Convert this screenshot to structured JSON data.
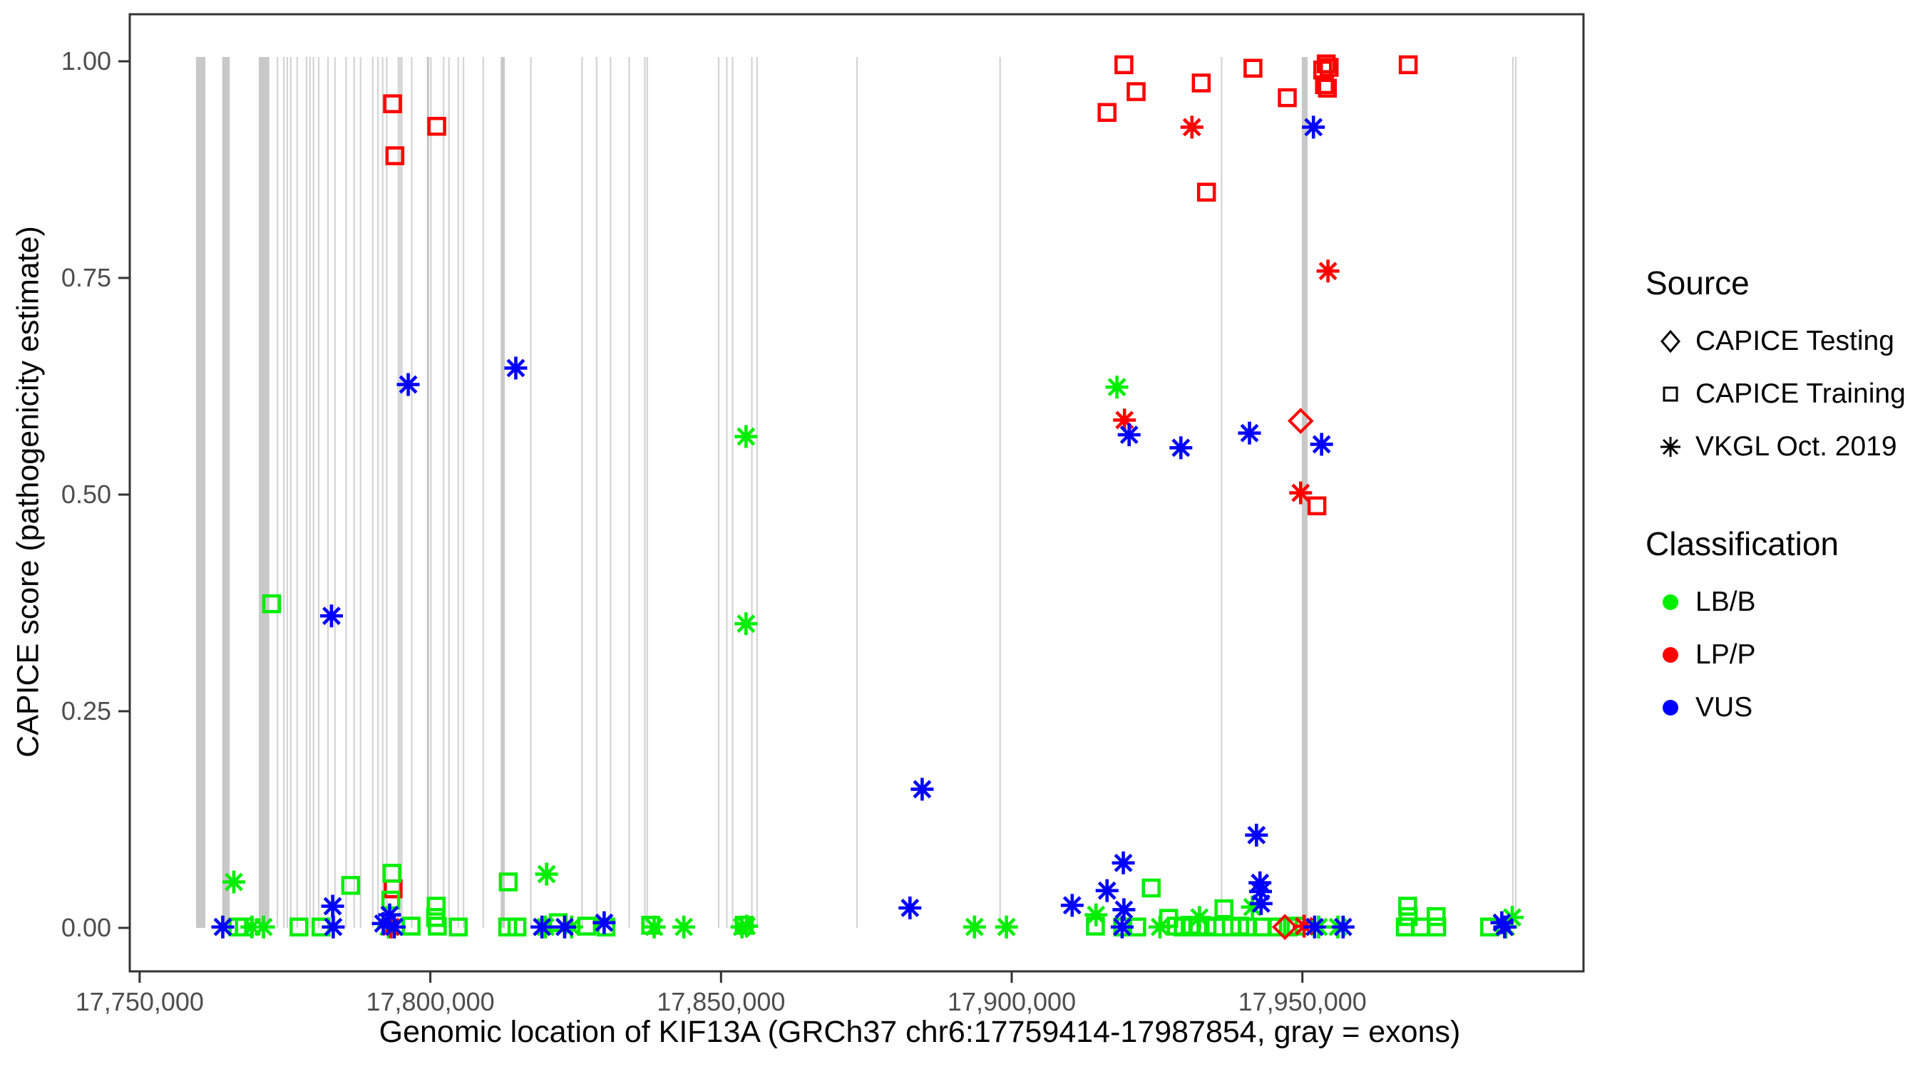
{
  "figure": {
    "xlabel": "Genomic location of KIF13A (GRCh37 chr6:17759414-17987854, gray = exons)",
    "ylabel": "CAPICE score (pathogenicity estimate)"
  },
  "legend": {
    "source": {
      "title": "Source",
      "items": [
        {
          "label": "CAPICE Testing",
          "marker": "diamond"
        },
        {
          "label": "CAPICE Training",
          "marker": "square"
        },
        {
          "label": "VKGL Oct. 2019",
          "marker": "asterisk"
        }
      ]
    },
    "classification": {
      "title": "Classification",
      "items": [
        {
          "label": "LB/B",
          "color": "#00EE00"
        },
        {
          "label": "LP/P",
          "color": "#FF0000"
        },
        {
          "label": "VUS",
          "color": "#0000FF"
        }
      ]
    }
  },
  "chart_data": {
    "type": "scatter",
    "title": "",
    "xlabel": "Genomic location of KIF13A (GRCh37 chr6:17759414-17987854, gray = exons)",
    "ylabel": "CAPICE score (pathogenicity estimate)",
    "grid": "off",
    "legend_position": "right",
    "x_domain": [
      17748300,
      17998350
    ],
    "y_domain": [
      -0.0502,
      1.0543
    ],
    "x_ticks": [
      {
        "value": 17750000,
        "label": "17,750,000"
      },
      {
        "value": 17800000,
        "label": "17,800,000"
      },
      {
        "value": 17850000,
        "label": "17,850,000"
      },
      {
        "value": 17900000,
        "label": "17,900,000"
      },
      {
        "value": 17950000,
        "label": "17,950,000"
      }
    ],
    "y_ticks": [
      {
        "value": 0.0,
        "label": "0.00"
      },
      {
        "value": 0.25,
        "label": "0.25"
      },
      {
        "value": 0.5,
        "label": "0.50"
      },
      {
        "value": 0.75,
        "label": "0.75"
      },
      {
        "value": 1.0,
        "label": "1.00"
      }
    ],
    "marker_by_source": {
      "CAPICE Testing": "diamond",
      "CAPICE Training": "square",
      "VKGL Oct. 2019": "asterisk"
    },
    "color_by_classification": {
      "LB/B": "#00EE00",
      "LP/P": "#FF0000",
      "VUS": "#0000FF"
    },
    "exon_color_wide": "#C8C8C8",
    "exon_color_thin": "#D4D4D4",
    "exon_y_span": [
      0,
      1.005
    ],
    "exon_regions": [
      [
        17759700,
        17761300
      ],
      [
        17764200,
        17765500
      ],
      [
        17770500,
        17772300
      ],
      [
        17799400,
        17799800
      ],
      [
        17812100,
        17812800
      ],
      [
        17949900,
        17950900
      ]
    ],
    "exon_lines": [
      17773700,
      17774800,
      17775400,
      17776000,
      17777100,
      17778700,
      17779300,
      17779900,
      17780800,
      17782400,
      17783600,
      17785500,
      17786900,
      17788000,
      17790100,
      17791000,
      17791800,
      17792500,
      17794500,
      17794800,
      17795100,
      17796800,
      17800100,
      17802300,
      17803200,
      17804800,
      17805700,
      17809100,
      17817300,
      17826100,
      17828600,
      17831000,
      17834200,
      17836900,
      17837300,
      17849600,
      17851000,
      17852000,
      17855300,
      17856200,
      17873400,
      17898000,
      17936100,
      17986200,
      17986700
    ],
    "points_format": [
      "genomic_position",
      "capice_score",
      "source",
      "classification"
    ],
    "points": [
      [
        17793500,
        0.951,
        "CAPICE Training",
        "LP/P"
      ],
      [
        17801100,
        0.925,
        "CAPICE Training",
        "LP/P"
      ],
      [
        17793900,
        0.891,
        "CAPICE Training",
        "LP/P"
      ],
      [
        17919300,
        0.996,
        "CAPICE Training",
        "LP/P"
      ],
      [
        17921400,
        0.965,
        "CAPICE Training",
        "LP/P"
      ],
      [
        17916400,
        0.941,
        "CAPICE Training",
        "LP/P"
      ],
      [
        17932600,
        0.975,
        "CAPICE Training",
        "LP/P"
      ],
      [
        17941500,
        0.992,
        "CAPICE Training",
        "LP/P"
      ],
      [
        17947400,
        0.958,
        "CAPICE Training",
        "LP/P"
      ],
      [
        17953500,
        0.99,
        "CAPICE Training",
        "LP/P"
      ],
      [
        17954100,
        0.997,
        "CAPICE Training",
        "LP/P"
      ],
      [
        17954600,
        0.993,
        "CAPICE Training",
        "LP/P"
      ],
      [
        17953800,
        0.973,
        "CAPICE Training",
        "LP/P"
      ],
      [
        17954300,
        0.969,
        "CAPICE Training",
        "LP/P"
      ],
      [
        17968200,
        0.996,
        "CAPICE Training",
        "LP/P"
      ],
      [
        17933500,
        0.849,
        "CAPICE Training",
        "LP/P"
      ],
      [
        17952500,
        0.487,
        "CAPICE Training",
        "LP/P"
      ],
      [
        17793600,
        0.045,
        "CAPICE Training",
        "LP/P"
      ],
      [
        17772700,
        0.374,
        "CAPICE Training",
        "LB/B"
      ],
      [
        17766900,
        0.001,
        "CAPICE Training",
        "LB/B"
      ],
      [
        17768000,
        0.001,
        "CAPICE Training",
        "LB/B"
      ],
      [
        17777400,
        0.001,
        "CAPICE Training",
        "LB/B"
      ],
      [
        17781200,
        0.001,
        "CAPICE Training",
        "LB/B"
      ],
      [
        17786300,
        0.049,
        "CAPICE Training",
        "LB/B"
      ],
      [
        17793400,
        0.063,
        "CAPICE Training",
        "LB/B"
      ],
      [
        17793200,
        0.032,
        "CAPICE Training",
        "LB/B"
      ],
      [
        17796700,
        0.002,
        "CAPICE Training",
        "LB/B"
      ],
      [
        17801000,
        0.025,
        "CAPICE Training",
        "LB/B"
      ],
      [
        17800900,
        0.012,
        "CAPICE Training",
        "LB/B"
      ],
      [
        17801200,
        0.002,
        "CAPICE Training",
        "LB/B"
      ],
      [
        17804800,
        0.001,
        "CAPICE Training",
        "LB/B"
      ],
      [
        17813300,
        0.001,
        "CAPICE Training",
        "LB/B"
      ],
      [
        17814900,
        0.001,
        "CAPICE Training",
        "LB/B"
      ],
      [
        17813400,
        0.053,
        "CAPICE Training",
        "LB/B"
      ],
      [
        17822000,
        0.006,
        "CAPICE Training",
        "LB/B"
      ],
      [
        17826900,
        0.002,
        "CAPICE Training",
        "LB/B"
      ],
      [
        17830200,
        0.001,
        "CAPICE Training",
        "LB/B"
      ],
      [
        17837900,
        0.003,
        "CAPICE Training",
        "LB/B"
      ],
      [
        17854000,
        0.003,
        "CAPICE Training",
        "LB/B"
      ],
      [
        17914400,
        0.002,
        "CAPICE Training",
        "LB/B"
      ],
      [
        17924000,
        0.046,
        "CAPICE Training",
        "LB/B"
      ],
      [
        17927000,
        0.011,
        "CAPICE Training",
        "LB/B"
      ],
      [
        17919100,
        0.001,
        "CAPICE Training",
        "LB/B"
      ],
      [
        17921500,
        0.001,
        "CAPICE Training",
        "LB/B"
      ],
      [
        17928300,
        0.002,
        "CAPICE Training",
        "LB/B"
      ],
      [
        17929500,
        0.001,
        "CAPICE Training",
        "LB/B"
      ],
      [
        17930700,
        0.003,
        "CAPICE Training",
        "LB/B"
      ],
      [
        17932000,
        0.001,
        "CAPICE Training",
        "LB/B"
      ],
      [
        17933600,
        0.002,
        "CAPICE Training",
        "LB/B"
      ],
      [
        17935100,
        0.001,
        "CAPICE Training",
        "LB/B"
      ],
      [
        17936500,
        0.022,
        "CAPICE Training",
        "LB/B"
      ],
      [
        17937800,
        0.001,
        "CAPICE Training",
        "LB/B"
      ],
      [
        17939200,
        0.002,
        "CAPICE Training",
        "LB/B"
      ],
      [
        17940600,
        0.001,
        "CAPICE Training",
        "LB/B"
      ],
      [
        17943100,
        0.001,
        "CAPICE Training",
        "LB/B"
      ],
      [
        17945600,
        0.001,
        "CAPICE Training",
        "LB/B"
      ],
      [
        17947600,
        0.001,
        "CAPICE Training",
        "LB/B"
      ],
      [
        17948900,
        0.002,
        "CAPICE Training",
        "LB/B"
      ],
      [
        17967700,
        0.001,
        "CAPICE Training",
        "LB/B"
      ],
      [
        17970300,
        0.001,
        "CAPICE Training",
        "LB/B"
      ],
      [
        17968100,
        0.025,
        "CAPICE Training",
        "LB/B"
      ],
      [
        17968200,
        0.013,
        "CAPICE Training",
        "LB/B"
      ],
      [
        17973000,
        0.013,
        "CAPICE Training",
        "LB/B"
      ],
      [
        17973100,
        0.001,
        "CAPICE Training",
        "LB/B"
      ],
      [
        17982200,
        0.001,
        "CAPICE Training",
        "LB/B"
      ],
      [
        17949700,
        0.585,
        "CAPICE Testing",
        "LP/P"
      ],
      [
        17947000,
        0.001,
        "CAPICE Testing",
        "LP/P"
      ],
      [
        17766200,
        0.053,
        "VKGL Oct. 2019",
        "LB/B"
      ],
      [
        17769300,
        0.001,
        "VKGL Oct. 2019",
        "LB/B"
      ],
      [
        17771300,
        0.001,
        "VKGL Oct. 2019",
        "LB/B"
      ],
      [
        17792800,
        0.001,
        "VKGL Oct. 2019",
        "LB/B"
      ],
      [
        17819800,
        0.001,
        "VKGL Oct. 2019",
        "LB/B"
      ],
      [
        17824300,
        0.001,
        "VKGL Oct. 2019",
        "LB/B"
      ],
      [
        17820000,
        0.062,
        "VKGL Oct. 2019",
        "LB/B"
      ],
      [
        17838500,
        0.001,
        "VKGL Oct. 2019",
        "LB/B"
      ],
      [
        17843600,
        0.001,
        "VKGL Oct. 2019",
        "LB/B"
      ],
      [
        17853600,
        0.001,
        "VKGL Oct. 2019",
        "LB/B"
      ],
      [
        17854400,
        0.002,
        "VKGL Oct. 2019",
        "LB/B"
      ],
      [
        17854300,
        0.567,
        "VKGL Oct. 2019",
        "LB/B"
      ],
      [
        17854300,
        0.351,
        "VKGL Oct. 2019",
        "LB/B"
      ],
      [
        17893600,
        0.001,
        "VKGL Oct. 2019",
        "LB/B"
      ],
      [
        17899100,
        0.001,
        "VKGL Oct. 2019",
        "LB/B"
      ],
      [
        17914500,
        0.015,
        "VKGL Oct. 2019",
        "LB/B"
      ],
      [
        17918100,
        0.624,
        "VKGL Oct. 2019",
        "LB/B"
      ],
      [
        17925500,
        0.001,
        "VKGL Oct. 2019",
        "LB/B"
      ],
      [
        17932300,
        0.012,
        "VKGL Oct. 2019",
        "LB/B"
      ],
      [
        17941400,
        0.024,
        "VKGL Oct. 2019",
        "LB/B"
      ],
      [
        17952800,
        0.001,
        "VKGL Oct. 2019",
        "LB/B"
      ],
      [
        17956100,
        0.001,
        "VKGL Oct. 2019",
        "LB/B"
      ],
      [
        17986100,
        0.012,
        "VKGL Oct. 2019",
        "LB/B"
      ],
      [
        17985000,
        0.001,
        "VKGL Oct. 2019",
        "LB/B"
      ],
      [
        17931000,
        0.924,
        "VKGL Oct. 2019",
        "LP/P"
      ],
      [
        17954400,
        0.758,
        "VKGL Oct. 2019",
        "LP/P"
      ],
      [
        17919400,
        0.586,
        "VKGL Oct. 2019",
        "LP/P"
      ],
      [
        17949700,
        0.502,
        "VKGL Oct. 2019",
        "LP/P"
      ],
      [
        17950300,
        0.002,
        "VKGL Oct. 2019",
        "LP/P"
      ],
      [
        17793200,
        0.001,
        "VKGL Oct. 2019",
        "LP/P"
      ],
      [
        17796200,
        0.627,
        "VKGL Oct. 2019",
        "VUS"
      ],
      [
        17814700,
        0.646,
        "VKGL Oct. 2019",
        "VUS"
      ],
      [
        17783000,
        0.36,
        "VKGL Oct. 2019",
        "VUS"
      ],
      [
        17764300,
        0.001,
        "VKGL Oct. 2019",
        "VUS"
      ],
      [
        17783200,
        0.025,
        "VKGL Oct. 2019",
        "VUS"
      ],
      [
        17783300,
        0.001,
        "VKGL Oct. 2019",
        "VUS"
      ],
      [
        17793000,
        0.015,
        "VKGL Oct. 2019",
        "VUS"
      ],
      [
        17791900,
        0.005,
        "VKGL Oct. 2019",
        "VUS"
      ],
      [
        17793800,
        0.001,
        "VKGL Oct. 2019",
        "VUS"
      ],
      [
        17819200,
        0.001,
        "VKGL Oct. 2019",
        "VUS"
      ],
      [
        17823100,
        0.001,
        "VKGL Oct. 2019",
        "VUS"
      ],
      [
        17829900,
        0.006,
        "VKGL Oct. 2019",
        "VUS"
      ],
      [
        17884600,
        0.16,
        "VKGL Oct. 2019",
        "VUS"
      ],
      [
        17882500,
        0.023,
        "VKGL Oct. 2019",
        "VUS"
      ],
      [
        17910400,
        0.026,
        "VKGL Oct. 2019",
        "VUS"
      ],
      [
        17916400,
        0.043,
        "VKGL Oct. 2019",
        "VUS"
      ],
      [
        17919200,
        0.075,
        "VKGL Oct. 2019",
        "VUS"
      ],
      [
        17919300,
        0.021,
        "VKGL Oct. 2019",
        "VUS"
      ],
      [
        17919000,
        0.001,
        "VKGL Oct. 2019",
        "VUS"
      ],
      [
        17920200,
        0.569,
        "VKGL Oct. 2019",
        "VUS"
      ],
      [
        17929100,
        0.554,
        "VKGL Oct. 2019",
        "VUS"
      ],
      [
        17940900,
        0.571,
        "VKGL Oct. 2019",
        "VUS"
      ],
      [
        17942100,
        0.107,
        "VKGL Oct. 2019",
        "VUS"
      ],
      [
        17942700,
        0.052,
        "VKGL Oct. 2019",
        "VUS"
      ],
      [
        17942800,
        0.042,
        "VKGL Oct. 2019",
        "VUS"
      ],
      [
        17942900,
        0.028,
        "VKGL Oct. 2019",
        "VUS"
      ],
      [
        17951900,
        0.924,
        "VKGL Oct. 2019",
        "VUS"
      ],
      [
        17953300,
        0.558,
        "VKGL Oct. 2019",
        "VUS"
      ],
      [
        17952100,
        0.001,
        "VKGL Oct. 2019",
        "VUS"
      ],
      [
        17957000,
        0.001,
        "VKGL Oct. 2019",
        "VUS"
      ],
      [
        17984300,
        0.006,
        "VKGL Oct. 2019",
        "VUS"
      ],
      [
        17984800,
        0.001,
        "VKGL Oct. 2019",
        "VUS"
      ]
    ]
  }
}
